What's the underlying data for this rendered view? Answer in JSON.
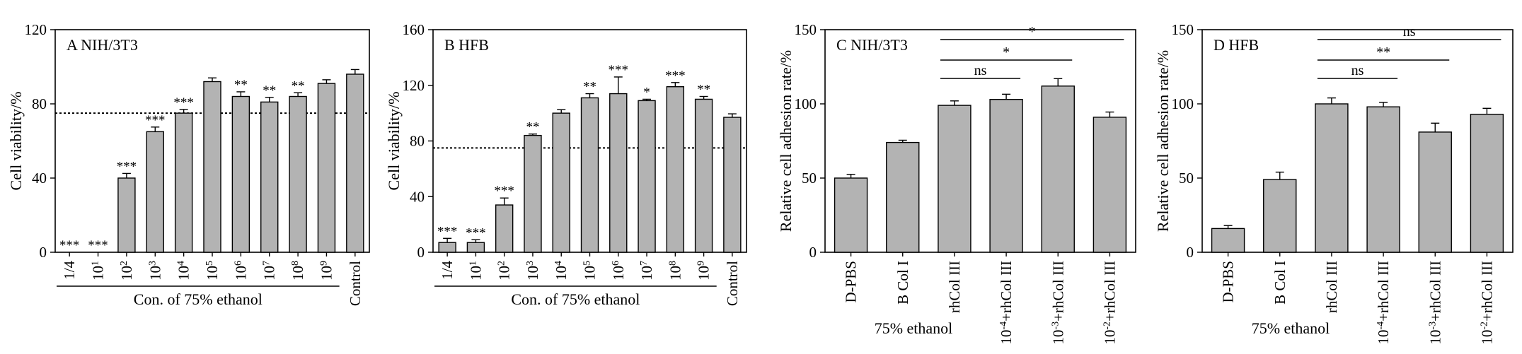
{
  "chart_data": [
    {
      "panel": "A",
      "type": "bar",
      "title": "NIH/3T3",
      "ylabel": "Cell viability/%",
      "ylim": [
        0,
        120
      ],
      "yticks": [
        0,
        40,
        80,
        120
      ],
      "ref_line": 75,
      "categories": [
        "1/4",
        "10^1",
        "10^2",
        "10^3",
        "10^4",
        "10^5",
        "10^6",
        "10^7",
        "10^8",
        "10^9",
        "Control"
      ],
      "values": [
        0,
        0,
        40,
        65,
        75,
        92,
        84,
        81,
        84,
        91,
        96
      ],
      "errors": [
        0,
        0,
        2.5,
        2.5,
        2,
        2,
        2.5,
        2.5,
        2,
        2,
        2.5
      ],
      "sig": [
        "***",
        "***",
        "***",
        "***",
        "***",
        "",
        "**",
        "**",
        "**",
        "",
        ""
      ],
      "group_label": "Con. of 75% ethanol",
      "group_span": [
        0,
        9
      ]
    },
    {
      "panel": "B",
      "type": "bar",
      "title": "HFB",
      "ylabel": "Cell viability/%",
      "ylim": [
        0,
        160
      ],
      "yticks": [
        0,
        40,
        80,
        120,
        160
      ],
      "ref_line": 75,
      "categories": [
        "1/4",
        "10^1",
        "10^2",
        "10^3",
        "10^4",
        "10^5",
        "10^6",
        "10^7",
        "10^8",
        "10^9",
        "Control"
      ],
      "values": [
        7,
        7,
        34,
        84,
        100,
        111,
        114,
        109,
        119,
        110,
        97
      ],
      "errors": [
        3,
        2,
        5,
        1,
        2.5,
        3,
        12,
        1,
        3,
        2,
        2.5
      ],
      "sig": [
        "***",
        "***",
        "***",
        "**",
        "",
        "**",
        "***",
        "*",
        "***",
        "**",
        ""
      ],
      "group_label": "Con. of 75% ethanol",
      "group_span": [
        0,
        9
      ]
    },
    {
      "panel": "C",
      "type": "bar",
      "title": "NIH/3T3",
      "ylabel": "Relative cell adhesion rate/%",
      "ylim": [
        0,
        150
      ],
      "yticks": [
        0,
        50,
        100,
        150
      ],
      "categories": [
        "D-PBS",
        "B Col I",
        "rhCol III",
        "10^-4+rhCol III",
        "10^-3+rhCol III",
        "10^-2+rhCol III"
      ],
      "values": [
        50,
        74,
        99,
        103,
        112,
        91
      ],
      "errors": [
        2.5,
        1.5,
        3,
        3.5,
        5,
        3.5
      ],
      "brackets": [
        {
          "from": 2,
          "to": 3,
          "label": "ns"
        },
        {
          "from": 2,
          "to": 4,
          "label": "*"
        },
        {
          "from": 2,
          "to": 5,
          "label": "*"
        }
      ],
      "group_label": "75% ethanol"
    },
    {
      "panel": "D",
      "type": "bar",
      "title": "HFB",
      "ylabel": "Relative cell adhesion rate/%",
      "ylim": [
        0,
        150
      ],
      "yticks": [
        0,
        50,
        100,
        150
      ],
      "categories": [
        "D-PBS",
        "B Col I",
        "rhCol III",
        "10^-4+rhCol III",
        "10^-3+rhCol III",
        "10^-2+rhCol III"
      ],
      "values": [
        16,
        49,
        100,
        98,
        81,
        93
      ],
      "errors": [
        2,
        5,
        4,
        3,
        6,
        4
      ],
      "brackets": [
        {
          "from": 2,
          "to": 3,
          "label": "ns"
        },
        {
          "from": 2,
          "to": 4,
          "label": "**"
        },
        {
          "from": 2,
          "to": 5,
          "label": "ns"
        }
      ],
      "group_label": "75% ethanol"
    }
  ]
}
